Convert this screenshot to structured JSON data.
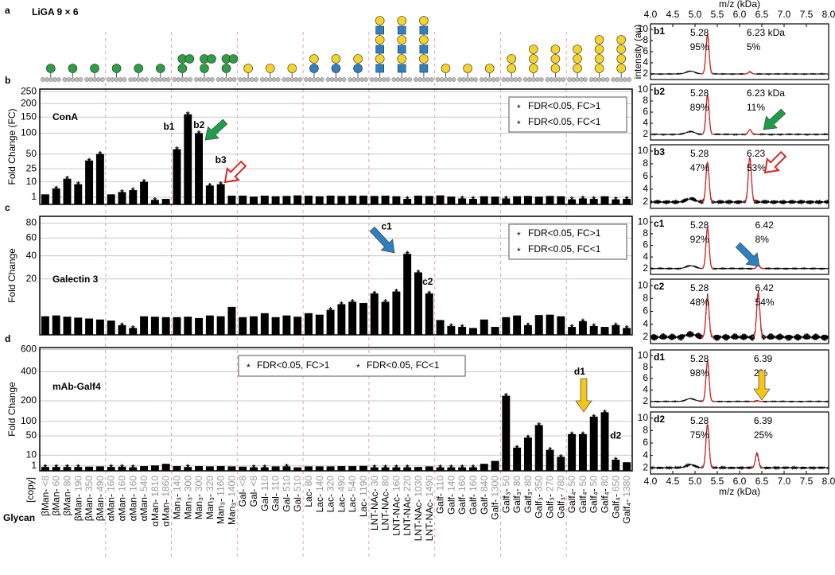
{
  "figure": {
    "panel": "a",
    "title": "LiGA 9 × 6",
    "marker_symbol": "*"
  },
  "chart_data": [
    {
      "type": "bar",
      "panel": "b",
      "name": "ConA",
      "ylabel": "Fold Change (FC)",
      "y_scale": "sqrt",
      "ylim": [
        0,
        262
      ],
      "yticks": [
        1,
        10,
        25,
        50,
        100,
        150,
        200,
        250
      ],
      "grid": true,
      "color": "#000000",
      "values": [
        2,
        5,
        13,
        8,
        38,
        50,
        2,
        3,
        4,
        10,
        0.4,
        0.6,
        60,
        160,
        100,
        7,
        8,
        1.5,
        1.5,
        1.2,
        1.5,
        1.3,
        1.4,
        1.6,
        1.5,
        1.3,
        1.5,
        1.4,
        1.5,
        1.5,
        1.4,
        1.5,
        1.3,
        0.6,
        1.5,
        1.4,
        1.6,
        1.2,
        0.7,
        0.6,
        1.3,
        1.2,
        0.7,
        1.3,
        1.4,
        1.2,
        1.4,
        1.3,
        0.5,
        0.7,
        0.6,
        1.3,
        0.5,
        0.6
      ],
      "stars": [
        0,
        1,
        1,
        1,
        1,
        1,
        0,
        1,
        1,
        1,
        -1,
        0,
        1,
        1,
        1,
        1,
        1,
        0,
        0,
        0,
        0,
        0,
        0,
        0,
        0,
        0,
        0,
        0,
        0,
        0,
        0,
        0,
        0,
        -1,
        0,
        0,
        0,
        0,
        -1,
        -1,
        0,
        0,
        -1,
        0,
        0,
        0,
        0,
        0,
        -1,
        -1,
        -1,
        0,
        -1,
        -1
      ],
      "star_colors": [
        "#000000",
        "#aaaaaa"
      ],
      "legend": [
        "FDR<0.05, FC>1",
        "FDR<0.05, FC<1"
      ],
      "legend_position": "top-right",
      "annotations": [
        "b1",
        "b2",
        "b3"
      ]
    },
    {
      "type": "bar",
      "panel": "c",
      "name": "Galectin 3",
      "ylabel": "Fold Change",
      "y_scale": "sqrt",
      "ylim": [
        0,
        90
      ],
      "yticks": [
        20,
        40,
        60,
        80
      ],
      "grid": true,
      "color": "#000000",
      "values": [
        2.2,
        2.4,
        2.1,
        1.9,
        1.7,
        1.5,
        1.3,
        0.6,
        0.3,
        2.2,
        2.1,
        2.0,
        2.0,
        2.1,
        1.8,
        2.4,
        2.2,
        5.0,
        2.0,
        2.2,
        3.0,
        2.0,
        2.4,
        2.1,
        3.0,
        2.6,
        4.0,
        6.0,
        7.0,
        6.5,
        11,
        7,
        12,
        42,
        25,
        11,
        1.4,
        0.5,
        0.4,
        0.3,
        1.5,
        0.4,
        2.0,
        2.4,
        0.6,
        2.5,
        2.6,
        2.2,
        0.4,
        1.2,
        0.5,
        0.4,
        0.6,
        0.3
      ],
      "stars": [
        0,
        0,
        0,
        0,
        0,
        0,
        0,
        -1,
        -1,
        0,
        0,
        0,
        0,
        0,
        0,
        0,
        0,
        0,
        0,
        0,
        0,
        0,
        0,
        0,
        0,
        0,
        1,
        1,
        1,
        0,
        1,
        1,
        1,
        1,
        1,
        1,
        0,
        -1,
        -1,
        0,
        0,
        0,
        0,
        0,
        -1,
        0,
        0,
        0,
        -1,
        -1,
        -1,
        0,
        -1,
        -1
      ],
      "star_colors": [
        "#000000",
        "#aaaaaa"
      ],
      "legend": [
        "FDR<0.05, FC>1",
        "FDR<0.05, FC<1"
      ],
      "legend_position": "top-right",
      "annotations": [
        "c1",
        "c2"
      ]
    },
    {
      "type": "bar",
      "panel": "d",
      "name": "mAb-Galf4",
      "ylabel": "Fold Change",
      "y_scale": "sqrt",
      "ylim": [
        0,
        620
      ],
      "yticks": [
        1,
        10,
        50,
        100,
        200,
        400,
        600
      ],
      "grid": true,
      "color": "#000000",
      "xlabel": "Glycan",
      "xlabel_unit": "[copy]",
      "categories": [
        "βMan-",
        "βMan-",
        "βMan-",
        "βMan-",
        "βMan-",
        "βMan-",
        "αMan-",
        "αMan-",
        "αMan-",
        "αMan-",
        "αMan-",
        "αMan-",
        "Man₃-",
        "Man₃-",
        "Man₃-",
        "Man₃-",
        "Man₃-",
        "Man₃-",
        "Gal-",
        "Gal-",
        "Gal-",
        "Gal-",
        "Gal-",
        "Gal-",
        "Lac-",
        "Lac-",
        "Lac-",
        "Lac-",
        "Lac-",
        "Lac-",
        "LNT-NAc-",
        "LNT-NAc-",
        "LNT-NAc-",
        "LNT-NAc-",
        "LNT-NAc-",
        "LNT-NAc-",
        "Galf-",
        "Galf-",
        "Galf-",
        "Galf-",
        "Galf-",
        "Galf-",
        "Galf₃-",
        "Galf₃-",
        "Galf₃-",
        "Galf₃-",
        "Galf₃-",
        "Galf₃-",
        "Galf₄-",
        "Galf₄-",
        "Galf₄-",
        "Galf₄-",
        "Galf₄-",
        "Galf₄-"
      ],
      "copies": [
        "<8",
        "60",
        "80",
        "190",
        "350",
        "490",
        "160",
        "160",
        "160",
        "540",
        "1810",
        "1860",
        "140",
        "300",
        "300",
        "320",
        "1160",
        "1400",
        "<8",
        "<8",
        "110",
        "110",
        "510",
        "510",
        "80",
        "140",
        "320",
        "490",
        "540",
        "1190",
        "30",
        "80",
        "160",
        "220",
        "1030",
        "1490",
        "110",
        "140",
        "160",
        "160",
        "840",
        "1300",
        "50",
        "80",
        "80",
        "350",
        "270",
        "780",
        "50",
        "50",
        "50",
        "80",
        "650",
        "1380"
      ],
      "values": [
        0.6,
        0.6,
        0.6,
        0.6,
        0.7,
        0.8,
        0.6,
        0.7,
        0.5,
        0.9,
        1.2,
        2.0,
        0.9,
        0.6,
        0.9,
        0.8,
        0.9,
        0.8,
        0.7,
        0.5,
        0.5,
        0.8,
        0.8,
        0.5,
        0.8,
        0.8,
        0.8,
        0.9,
        0.9,
        1.0,
        0.5,
        0.5,
        0.5,
        0.5,
        0.6,
        0.8,
        0.5,
        0.5,
        0.5,
        0.5,
        2.0,
        4.0,
        230,
        22,
        45,
        85,
        18,
        8,
        55,
        55,
        120,
        140,
        5,
        3
      ],
      "stars": [
        -1,
        -1,
        -1,
        -1,
        0,
        0,
        -1,
        -1,
        -1,
        0,
        0,
        0,
        0,
        -1,
        0,
        0,
        0,
        0,
        0,
        -1,
        -1,
        0,
        -1,
        0,
        0,
        0,
        0,
        0,
        0,
        0,
        -1,
        -1,
        -1,
        -1,
        0,
        0,
        -1,
        -1,
        -1,
        -1,
        0,
        0,
        1,
        1,
        1,
        1,
        1,
        1,
        1,
        1,
        1,
        1,
        1,
        0
      ],
      "star_colors": [
        "#000000",
        "#aaaaaa"
      ],
      "legend": [
        "FDR<0.05, FC>1",
        "FDR<0.05, FC<1"
      ],
      "legend_position": "top-center",
      "annotations": [
        "d1",
        "d2"
      ]
    },
    {
      "type": "spectrum",
      "label": "b1",
      "xaxis": "top",
      "xlabel": "m/z (kDa)",
      "ylabel": "intensity (au)",
      "xlim": [
        4,
        8
      ],
      "ylim": [
        1,
        11
      ],
      "yticks": [
        2,
        4,
        6,
        8,
        10
      ],
      "color": "#000000",
      "fit_color": "#d62728",
      "xticks": [
        {
          "value": 4,
          "label": "4.0"
        },
        {
          "value": 4.5,
          "label": "4.5"
        },
        {
          "value": 5,
          "label": "5.0"
        },
        {
          "value": 5.5,
          "label": "5.5"
        },
        {
          "value": 6,
          "label": "6.0"
        },
        {
          "value": 6.5,
          "label": "6.5"
        },
        {
          "value": 7,
          "label": "7.0"
        },
        {
          "value": 7.5,
          "label": "7.5"
        },
        {
          "value": 8,
          "label": "8.0"
        }
      ],
      "peaks": [
        {
          "mass": 5.28,
          "percent": {
            "value": 95,
            "label": "95%"
          }
        },
        {
          "mass": {
            "value": 6.23,
            "label": "6.23 kDa"
          },
          "percent": {
            "value": 5,
            "label": "5%"
          }
        }
      ]
    },
    {
      "type": "spectrum",
      "label": "b2",
      "xlim": [
        4,
        8
      ],
      "ylim": [
        1,
        11
      ],
      "yticks": [
        2,
        4,
        6,
        8,
        10
      ],
      "color": "#000000",
      "fit_color": "#d62728",
      "peaks": [
        {
          "mass": 5.28,
          "percent": {
            "value": 89,
            "label": "89%"
          }
        },
        {
          "mass": {
            "value": 6.23,
            "label": "6.23 kDa"
          },
          "percent": {
            "value": 11,
            "label": "11%"
          }
        }
      ]
    },
    {
      "type": "spectrum",
      "label": "b3",
      "xlim": [
        4,
        8
      ],
      "ylim": [
        1,
        11
      ],
      "yticks": [
        2,
        4,
        6,
        8,
        10
      ],
      "color": "#000000",
      "fit_color": "#d62728",
      "peaks": [
        {
          "mass": 5.28,
          "percent": {
            "value": 47,
            "label": "47%"
          }
        },
        {
          "mass": 6.23,
          "percent": {
            "value": 53,
            "label": "53%"
          }
        }
      ]
    },
    {
      "type": "spectrum",
      "label": "c1",
      "xlim": [
        4,
        8
      ],
      "ylim": [
        1,
        11
      ],
      "yticks": [
        2,
        4,
        6,
        8,
        10
      ],
      "color": "#000000",
      "fit_color": "#d62728",
      "peaks": [
        {
          "mass": 5.28,
          "percent": {
            "value": 92,
            "label": "92%"
          }
        },
        {
          "mass": 6.42,
          "percent": {
            "value": 8,
            "label": "8%"
          }
        }
      ]
    },
    {
      "type": "spectrum",
      "label": "c2",
      "xlim": [
        4,
        8
      ],
      "ylim": [
        1,
        11
      ],
      "yticks": [
        2,
        4,
        6,
        8,
        10
      ],
      "color": "#000000",
      "fit_color": "#d62728",
      "peaks": [
        {
          "mass": 5.28,
          "percent": {
            "value": 48,
            "label": "48%"
          }
        },
        {
          "mass": 6.42,
          "percent": {
            "value": 54,
            "label": "54%"
          }
        }
      ]
    },
    {
      "type": "spectrum",
      "label": "d1",
      "xlim": [
        4,
        8
      ],
      "ylim": [
        1,
        11
      ],
      "yticks": [
        2,
        4,
        6,
        8,
        10
      ],
      "color": "#000000",
      "fit_color": "#d62728",
      "peaks": [
        {
          "mass": 5.28,
          "percent": {
            "value": 98,
            "label": "98%"
          }
        },
        {
          "mass": 6.39,
          "percent": {
            "value": 2,
            "label": "2%"
          }
        }
      ]
    },
    {
      "type": "spectrum",
      "label": "d2",
      "xaxis": "bottom",
      "xlabel": "m/z (kDa)",
      "xlim": [
        4,
        8
      ],
      "ylim": [
        1,
        11
      ],
      "yticks": [
        2,
        4,
        6,
        8,
        10
      ],
      "color": "#000000",
      "fit_color": "#d62728",
      "xticks": [
        {
          "value": 4,
          "label": "4.0"
        },
        {
          "value": 4.5,
          "label": "4.5"
        },
        {
          "value": 5,
          "label": "5.0"
        },
        {
          "value": 5.5,
          "label": "5.5"
        },
        {
          "value": 6,
          "label": "6.0"
        },
        {
          "value": 6.5,
          "label": "6.5"
        },
        {
          "value": 7,
          "label": "7.0"
        },
        {
          "value": 7.5,
          "label": "7.5"
        },
        {
          "value": 8,
          "label": "8.0"
        }
      ],
      "peaks": [
        {
          "mass": 5.28,
          "percent": {
            "value": 75,
            "label": "75%"
          }
        },
        {
          "mass": 6.39,
          "percent": {
            "value": 25,
            "label": "25%"
          }
        }
      ]
    }
  ]
}
